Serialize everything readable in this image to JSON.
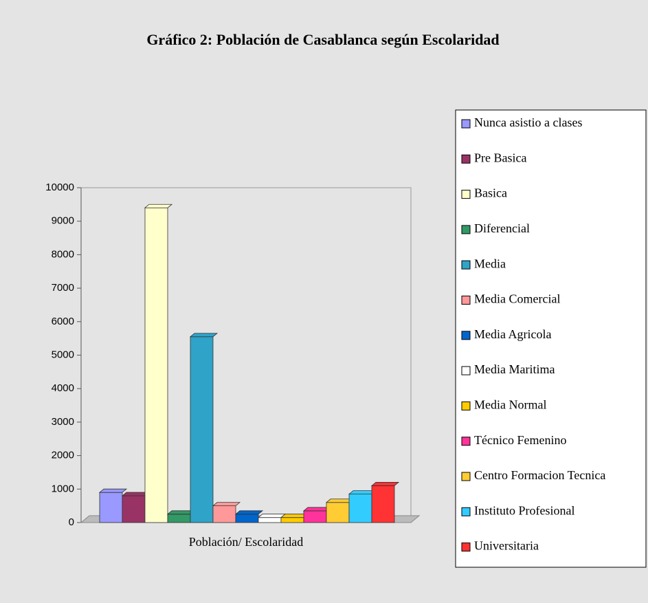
{
  "chart_data": {
    "type": "bar",
    "title": "Gráfico 2: Población de Casablanca según Escolaridad",
    "categories": [
      "Población/ Escolaridad"
    ],
    "ylim": [
      0,
      10000
    ],
    "yticks": [
      0,
      1000,
      2000,
      3000,
      4000,
      5000,
      6000,
      7000,
      8000,
      9000,
      10000
    ],
    "series": [
      {
        "name": "Nunca asistio a clases",
        "color": "#9999ff",
        "values": [
          900
        ]
      },
      {
        "name": "Pre Basica",
        "color": "#993366",
        "values": [
          800
        ]
      },
      {
        "name": "Basica",
        "color": "#ffffcc",
        "values": [
          9400
        ]
      },
      {
        "name": "Diferencial",
        "color": "#339966",
        "values": [
          250
        ]
      },
      {
        "name": "Media",
        "color": "#2fa3c8",
        "values": [
          5550
        ]
      },
      {
        "name": "Media Comercial",
        "color": "#ff9999",
        "values": [
          500
        ]
      },
      {
        "name": "Media Agricola",
        "color": "#0066cc",
        "values": [
          250
        ]
      },
      {
        "name": "Media Maritima",
        "color": "#ffffff",
        "values": [
          150
        ]
      },
      {
        "name": "Media Normal",
        "color": "#ffcc00",
        "values": [
          150
        ]
      },
      {
        "name": "Técnico Femenino",
        "color": "#ff3399",
        "values": [
          350
        ]
      },
      {
        "name": "Centro Formacion Tecnica",
        "color": "#ffcc33",
        "values": [
          600
        ]
      },
      {
        "name": "Instituto Profesional",
        "color": "#33ccff",
        "values": [
          850
        ]
      },
      {
        "name": "Universitaria",
        "color": "#ff3333",
        "values": [
          1100
        ]
      }
    ]
  }
}
